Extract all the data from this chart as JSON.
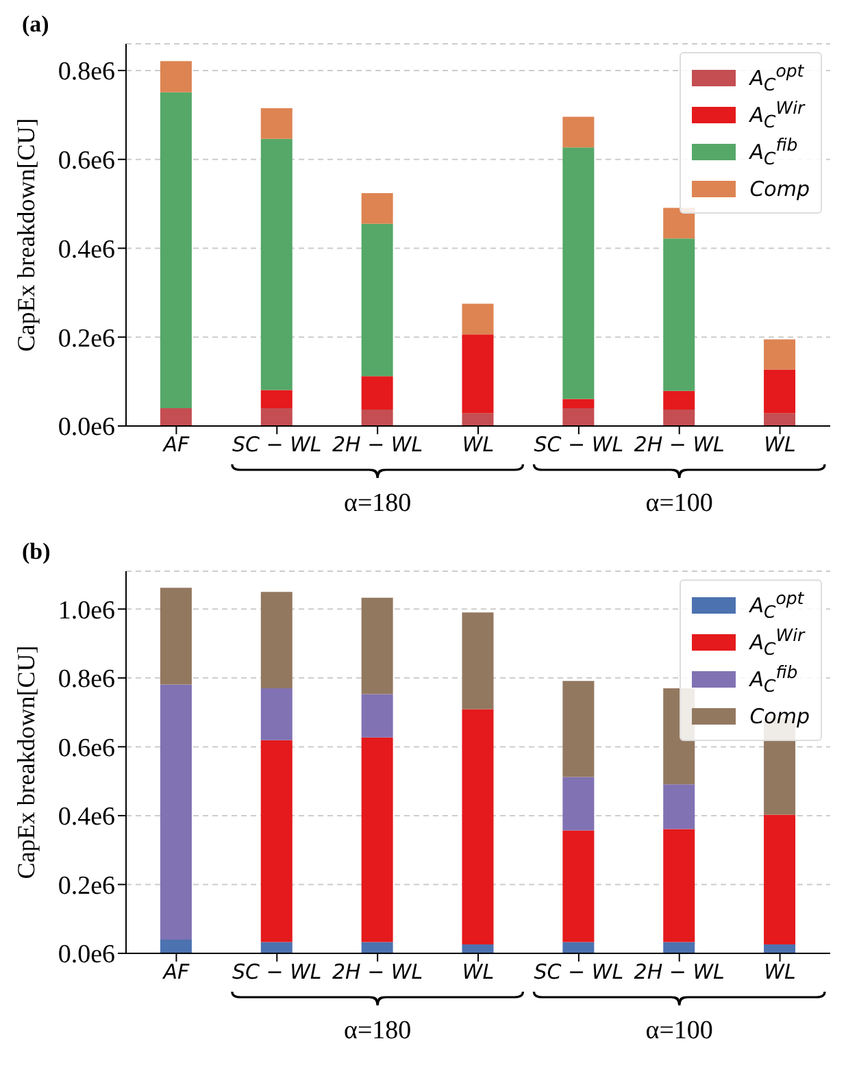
{
  "chart_data": [
    {
      "type": "bar",
      "title": "(a)",
      "ylabel": "CapEx breakdown[CU]",
      "stacked": true,
      "grid": "y",
      "legend": "top right",
      "categories": [
        "AF",
        "SC − WL",
        "2H − WL",
        "WL",
        "SC − WL",
        "2H − WL",
        "WL"
      ],
      "series": [
        {
          "name": "A$_{C}$$^{opt}$",
          "color": "#c44e52",
          "values": [
            40000,
            40000,
            37000,
            29000,
            40000,
            37000,
            29000
          ]
        },
        {
          "name": "A$_{C}$$^{Wir}$",
          "color": "#e41a1c",
          "values": [
            0,
            41000,
            75000,
            177000,
            21000,
            42000,
            98000
          ]
        },
        {
          "name": "A$_{C}$$^{fib}$",
          "color": "#55a868",
          "values": [
            711000,
            565000,
            343000,
            0,
            566000,
            343000,
            0
          ]
        },
        {
          "name": "Comp",
          "color": "#dd8452",
          "values": [
            70000,
            69000,
            69000,
            69000,
            69000,
            69000,
            68000
          ]
        }
      ],
      "ylim": [
        0,
        860000
      ],
      "yticks": [
        {
          "value": 0,
          "label": "0.0e6"
        },
        {
          "value": 200000,
          "label": "0.2e6"
        },
        {
          "value": 400000,
          "label": "0.4e6"
        },
        {
          "value": 600000,
          "label": "0.6e6"
        },
        {
          "value": 800000,
          "label": "0.8e6"
        }
      ],
      "annotations": [
        "α=180",
        "α=100"
      ]
    },
    {
      "type": "bar",
      "title": "(b)",
      "ylabel": "CapEx breakdown[CU]",
      "stacked": true,
      "grid": "y",
      "legend": "top right",
      "categories": [
        "AF",
        "SC − WL",
        "2H − WL",
        "WL",
        "SC − WL",
        "2H − WL",
        "WL"
      ],
      "series": [
        {
          "name": "A$_{C}$$^{opt}$",
          "color": "#4c72b0",
          "values": [
            40000,
            33000,
            33000,
            26000,
            33000,
            33000,
            26000
          ]
        },
        {
          "name": "A$_{C}$$^{Wir}$",
          "color": "#e41a1c",
          "values": [
            0,
            586000,
            594000,
            683000,
            324000,
            328000,
            377000
          ]
        },
        {
          "name": "A$_{C}$$^{fib}$",
          "color": "#8172b3",
          "values": [
            741000,
            151000,
            126000,
            0,
            155000,
            130000,
            0
          ]
        },
        {
          "name": "Comp",
          "color": "#937860",
          "values": [
            281000,
            280000,
            280000,
            281000,
            279000,
            279000,
            280000
          ]
        }
      ],
      "ylim": [
        0,
        1110000
      ],
      "yticks": [
        {
          "value": 0,
          "label": "0.0e6"
        },
        {
          "value": 200000,
          "label": "0.2e6"
        },
        {
          "value": 400000,
          "label": "0.4e6"
        },
        {
          "value": 600000,
          "label": "0.6e6"
        },
        {
          "value": 800000,
          "label": "0.8e6"
        },
        {
          "value": 1000000,
          "label": "1.0e6"
        }
      ],
      "annotations": [
        "α=180",
        "α=100"
      ]
    }
  ]
}
